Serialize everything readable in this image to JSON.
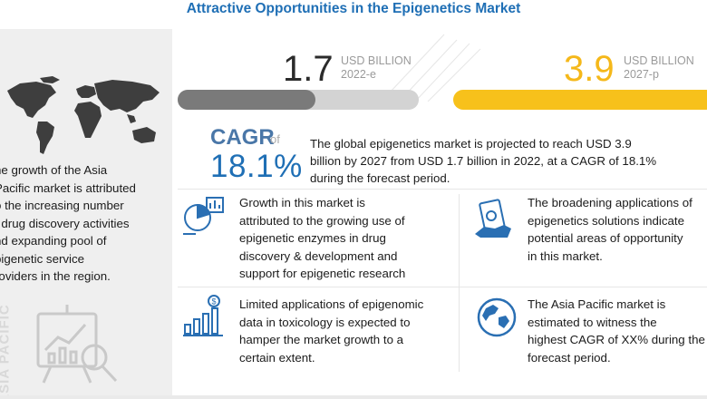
{
  "title": "Attractive Opportunities in the Epigenetics Market",
  "left_panel": {
    "watermark": "ASIA PACIFIC",
    "lines": [
      "he growth of the Asia",
      "Pacific market is attributed",
      "o the increasing number",
      "f drug discovery activities",
      "nd expanding pool of",
      "pigenetic service",
      "roviders in the region."
    ]
  },
  "stats": {
    "s1": {
      "value": "1.7",
      "unit": "USD BILLION",
      "year": "2022-e",
      "bar_fill_fraction": 0.57
    },
    "s2": {
      "value": "3.9",
      "unit": "USD BILLION",
      "year": "2027-p",
      "bar_fill_fraction": 1.0
    }
  },
  "cagr": {
    "label": "CAGR",
    "of": "of",
    "value": "18.1%",
    "desc_lines": [
      "The global epigenetics market is projected to reach USD 3.9",
      "billion by 2027 from USD 1.7 billion in 2022, at a CAGR of 18.1%",
      "during the forecast period."
    ]
  },
  "insights": {
    "i1": {
      "icon": "enzyme-chart-icon",
      "lines": [
        "Growth in this market is",
        "attributed to the growing use of",
        "epigenetic enzymes in drug",
        "discovery & development and",
        "support for epigenetic research"
      ]
    },
    "i2": {
      "icon": "money-icon",
      "lines": [
        "The broadening applications of",
        "epigenetics solutions indicate",
        "potential areas of opportunity",
        "in this market."
      ]
    },
    "i3": {
      "icon": "growth-bars-icon",
      "lines": [
        "Limited applications of epigenomic",
        "data in toxicology is expected to",
        "hamper the market growth to a",
        "certain extent."
      ]
    },
    "i4": {
      "icon": "globe-icon",
      "lines": [
        "The Asia Pacific market is",
        "estimated to witness the",
        "highest CAGR of XX% during the",
        "forecast period."
      ]
    }
  },
  "colors": {
    "accent": "#1f6fb5",
    "gold": "#f5b81a",
    "grey_bar": "#7a7a7a"
  }
}
